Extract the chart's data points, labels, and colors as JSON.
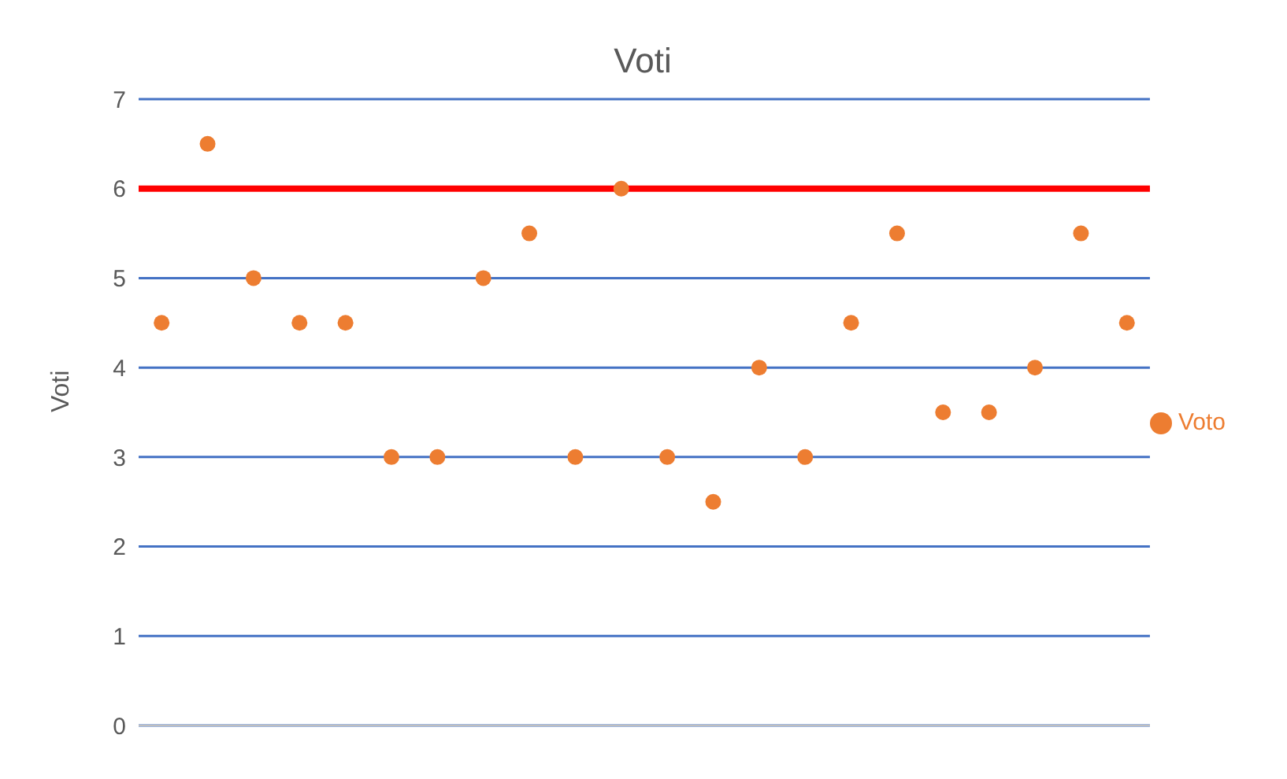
{
  "chart_data": {
    "type": "scatter",
    "title": "Voti",
    "ylabel": "Voti",
    "categories": [
      null,
      null,
      null,
      null,
      null,
      null,
      null,
      null,
      null,
      null,
      null,
      null,
      null,
      null,
      null,
      null,
      null,
      null,
      null,
      null,
      null,
      null
    ],
    "series": [
      {
        "name": "Voto",
        "color": "#ed7d31",
        "values": [
          4.5,
          6.5,
          5,
          4.5,
          4.5,
          3,
          3,
          5,
          5.5,
          3,
          6,
          3,
          2.5,
          4,
          3,
          4.5,
          5.5,
          3.5,
          3.5,
          4,
          5.5,
          4.5
        ]
      }
    ],
    "ylim": [
      0,
      7
    ],
    "yticks": [
      0,
      1,
      2,
      3,
      4,
      5,
      6,
      7
    ],
    "ref_lines": [
      {
        "axis": "y",
        "value": 6,
        "color": "#ff0000"
      }
    ],
    "grid": "y",
    "legend": "right",
    "marker": "circle"
  }
}
